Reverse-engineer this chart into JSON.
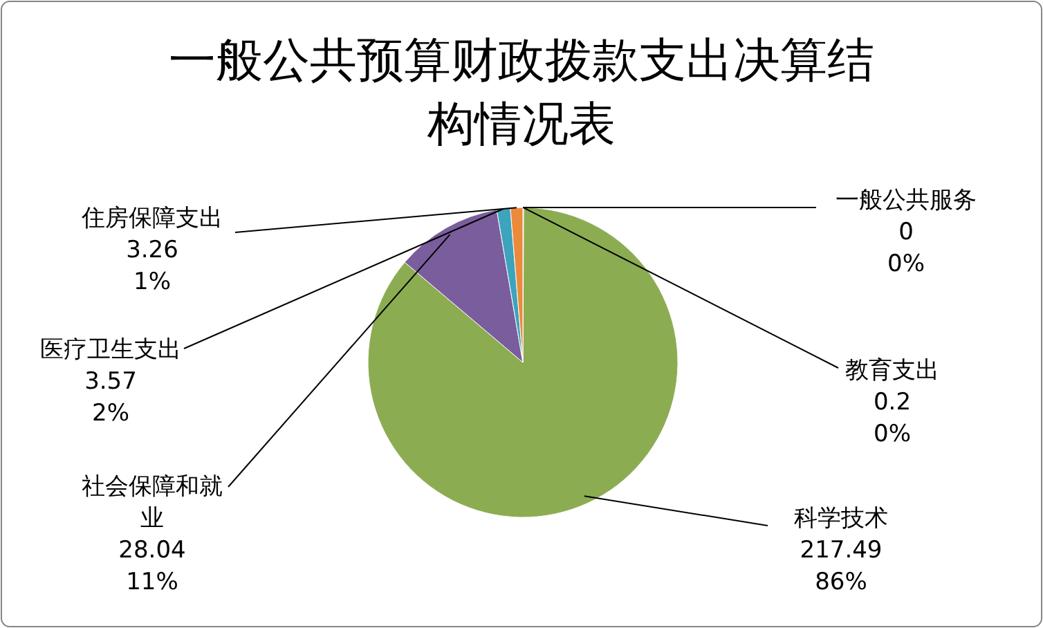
{
  "chart_data": {
    "type": "pie",
    "title": "一般公共预算财政拨款支出决算结构情况表",
    "categories": [
      "一般公共服务",
      "教育支出",
      "科学技术",
      "社会保障和就业",
      "医疗卫生支出",
      "住房保障支出"
    ],
    "values": [
      0,
      0.2,
      217.49,
      28.04,
      3.57,
      3.26
    ],
    "colors": [
      "#4f81bd",
      "#c0504d",
      "#8cac52",
      "#7a5d9c",
      "#3ea3bd",
      "#ec8a3c"
    ],
    "value_labels": [
      "0\n0%",
      "0.2\n0%",
      "217.49\n86%",
      "28.04\n11%",
      "3.57\n2%",
      "3.26\n1%"
    ],
    "legend": false
  }
}
